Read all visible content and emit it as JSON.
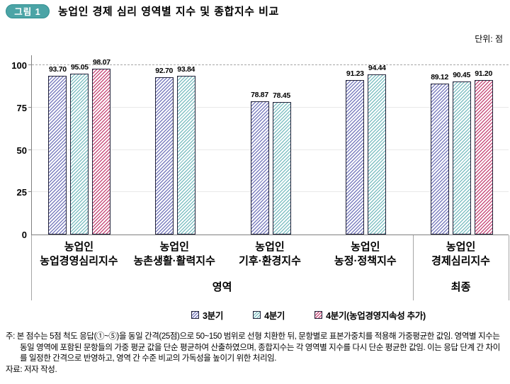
{
  "header": {
    "badge": "그림 1",
    "title": "농업인 경제 심리 영역별 지수 및 종합지수 비교",
    "unit_label": "단위: 점"
  },
  "chart_data": {
    "type": "bar",
    "title": "농업인 경제 심리 영역별 지수 및 종합지수 비교",
    "unit": "점",
    "categories": [
      [
        "농업인",
        "농업경영심리지수"
      ],
      [
        "농업인",
        "농촌생활·활력지수"
      ],
      [
        "농업인",
        "기후·환경지수"
      ],
      [
        "농업인",
        "농정·정책지수"
      ],
      [
        "농업인",
        "경제심리지수"
      ]
    ],
    "series": [
      {
        "name": "3분기",
        "color": "#7d80c0",
        "values": [
          93.7,
          92.7,
          78.87,
          91.23,
          89.12
        ]
      },
      {
        "name": "4분기",
        "color": "#82c1c4",
        "values": [
          95.05,
          93.84,
          78.45,
          94.44,
          90.45
        ]
      },
      {
        "name": "4분기(농업경영지속성 추가)",
        "color": "#c9527f",
        "values": [
          98.07,
          null,
          null,
          null,
          91.2
        ]
      }
    ],
    "ylim": [
      0,
      100
    ],
    "yticks": [
      0,
      25,
      50,
      75,
      100
    ],
    "dashed_gridline_at": 100,
    "grid": true,
    "legend_position": "bottom",
    "sections": [
      {
        "label": "영역",
        "from": 0,
        "to": 3
      },
      {
        "label": "최종",
        "from": 4,
        "to": 4
      }
    ]
  },
  "footer": {
    "note": "주: 본 점수는 5점 척도 응답(①~⑤)을 동일 간격(25점)으로 50~150 범위로 선형 치환한 뒤, 문항별로 표본가중치를 적용해 가중평균한 값임. 영역별 지수는 동일 영역에 포함된 문항들의 가중 평균 값을 단순 평균하여 산출하였으며, 종합지수는 각 영역별 지수를 다시 단순 평균한 값임. 이는 응답 단계 간 차이를 일정한 간격으로 반영하고, 영역 간 수준 비교의 가독성을 높이기 위한 처리임.",
    "source": "자료: 저자 작성."
  }
}
